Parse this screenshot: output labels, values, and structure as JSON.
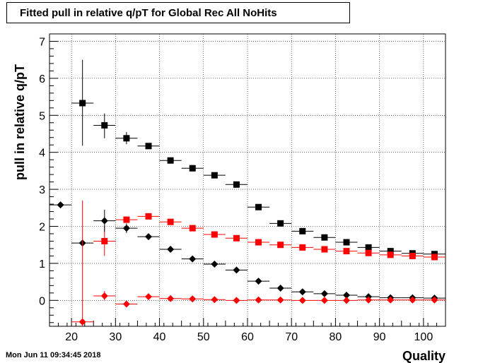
{
  "title": "Fitted pull in relative q/pT for Global Rec All NoHits",
  "timestamp": "Mon Jun 11 09:34:45 2018",
  "chart_data": {
    "type": "scatter",
    "title": "Fitted pull in relative q/pT for Global Rec All NoHits",
    "xlabel": "Quality",
    "ylabel": "pull in relative q/pT",
    "xlim": [
      15,
      105
    ],
    "ylim": [
      -0.7,
      7.2
    ],
    "grid": true,
    "xticks": [
      20,
      30,
      40,
      50,
      60,
      70,
      80,
      90,
      100
    ],
    "yticks": [
      0,
      1,
      2,
      3,
      4,
      5,
      6,
      7
    ],
    "series": [
      {
        "marker": "square",
        "color": "#000000",
        "points": [
          {
            "x": 22.5,
            "y": 5.33,
            "ylo": 4.18,
            "yhi": 6.5
          },
          {
            "x": 27.5,
            "y": 4.73,
            "ylo": 4.38,
            "yhi": 5.05
          },
          {
            "x": 32.5,
            "y": 4.38,
            "ylo": 4.22,
            "yhi": 4.55
          },
          {
            "x": 37.5,
            "y": 4.17,
            "ylo": 4.1,
            "yhi": 4.25
          },
          {
            "x": 42.5,
            "y": 3.78
          },
          {
            "x": 47.5,
            "y": 3.57
          },
          {
            "x": 52.5,
            "y": 3.38
          },
          {
            "x": 57.5,
            "y": 3.13
          },
          {
            "x": 62.5,
            "y": 2.52
          },
          {
            "x": 67.5,
            "y": 2.08
          },
          {
            "x": 72.5,
            "y": 1.87
          },
          {
            "x": 77.5,
            "y": 1.7
          },
          {
            "x": 82.5,
            "y": 1.57
          },
          {
            "x": 87.5,
            "y": 1.43
          },
          {
            "x": 92.5,
            "y": 1.33
          },
          {
            "x": 97.5,
            "y": 1.27
          },
          {
            "x": 102.5,
            "y": 1.25
          }
        ]
      },
      {
        "marker": "square",
        "color": "#ff0000",
        "points": [
          {
            "x": 27.5,
            "y": 1.6,
            "ylo": 1.2,
            "yhi": 2.0
          },
          {
            "x": 32.5,
            "y": 2.18
          },
          {
            "x": 37.5,
            "y": 2.27
          },
          {
            "x": 42.5,
            "y": 2.12
          },
          {
            "x": 47.5,
            "y": 1.95
          },
          {
            "x": 52.5,
            "y": 1.78
          },
          {
            "x": 57.5,
            "y": 1.68
          },
          {
            "x": 62.5,
            "y": 1.57
          },
          {
            "x": 67.5,
            "y": 1.5
          },
          {
            "x": 72.5,
            "y": 1.43
          },
          {
            "x": 77.5,
            "y": 1.38
          },
          {
            "x": 82.5,
            "y": 1.33
          },
          {
            "x": 87.5,
            "y": 1.28
          },
          {
            "x": 92.5,
            "y": 1.23
          },
          {
            "x": 97.5,
            "y": 1.2
          },
          {
            "x": 102.5,
            "y": 1.17
          }
        ]
      },
      {
        "marker": "diamond",
        "color": "#000000",
        "points": [
          {
            "x": 17.5,
            "y": 2.58
          },
          {
            "x": 22.5,
            "y": 1.55
          },
          {
            "x": 27.5,
            "y": 2.15,
            "ylo": 1.85,
            "yhi": 2.45
          },
          {
            "x": 32.5,
            "y": 1.95,
            "ylo": 1.82,
            "yhi": 2.08
          },
          {
            "x": 37.5,
            "y": 1.72
          },
          {
            "x": 42.5,
            "y": 1.38
          },
          {
            "x": 47.5,
            "y": 1.12
          },
          {
            "x": 52.5,
            "y": 0.98
          },
          {
            "x": 57.5,
            "y": 0.82
          },
          {
            "x": 62.5,
            "y": 0.52
          },
          {
            "x": 67.5,
            "y": 0.33
          },
          {
            "x": 72.5,
            "y": 0.23
          },
          {
            "x": 77.5,
            "y": 0.18
          },
          {
            "x": 82.5,
            "y": 0.14
          },
          {
            "x": 87.5,
            "y": 0.1
          },
          {
            "x": 92.5,
            "y": 0.07
          },
          {
            "x": 97.5,
            "y": 0.07
          },
          {
            "x": 102.5,
            "y": 0.06
          }
        ]
      },
      {
        "marker": "diamond",
        "color": "#ff0000",
        "points": [
          {
            "x": 22.5,
            "y": -0.58,
            "ylo": -0.7,
            "yhi": 2.7
          },
          {
            "x": 27.5,
            "y": 0.12,
            "ylo": 0.0,
            "yhi": 0.25
          },
          {
            "x": 32.5,
            "y": -0.1
          },
          {
            "x": 37.5,
            "y": 0.1
          },
          {
            "x": 42.5,
            "y": 0.05
          },
          {
            "x": 47.5,
            "y": 0.04
          },
          {
            "x": 52.5,
            "y": 0.02
          },
          {
            "x": 57.5,
            "y": 0.0
          },
          {
            "x": 62.5,
            "y": 0.01
          },
          {
            "x": 67.5,
            "y": 0.01
          },
          {
            "x": 72.5,
            "y": 0.0
          },
          {
            "x": 77.5,
            "y": 0.0
          },
          {
            "x": 82.5,
            "y": 0.0
          },
          {
            "x": 87.5,
            "y": 0.01
          },
          {
            "x": 92.5,
            "y": 0.01
          },
          {
            "x": 97.5,
            "y": 0.01
          },
          {
            "x": 102.5,
            "y": 0.01
          }
        ]
      }
    ]
  }
}
